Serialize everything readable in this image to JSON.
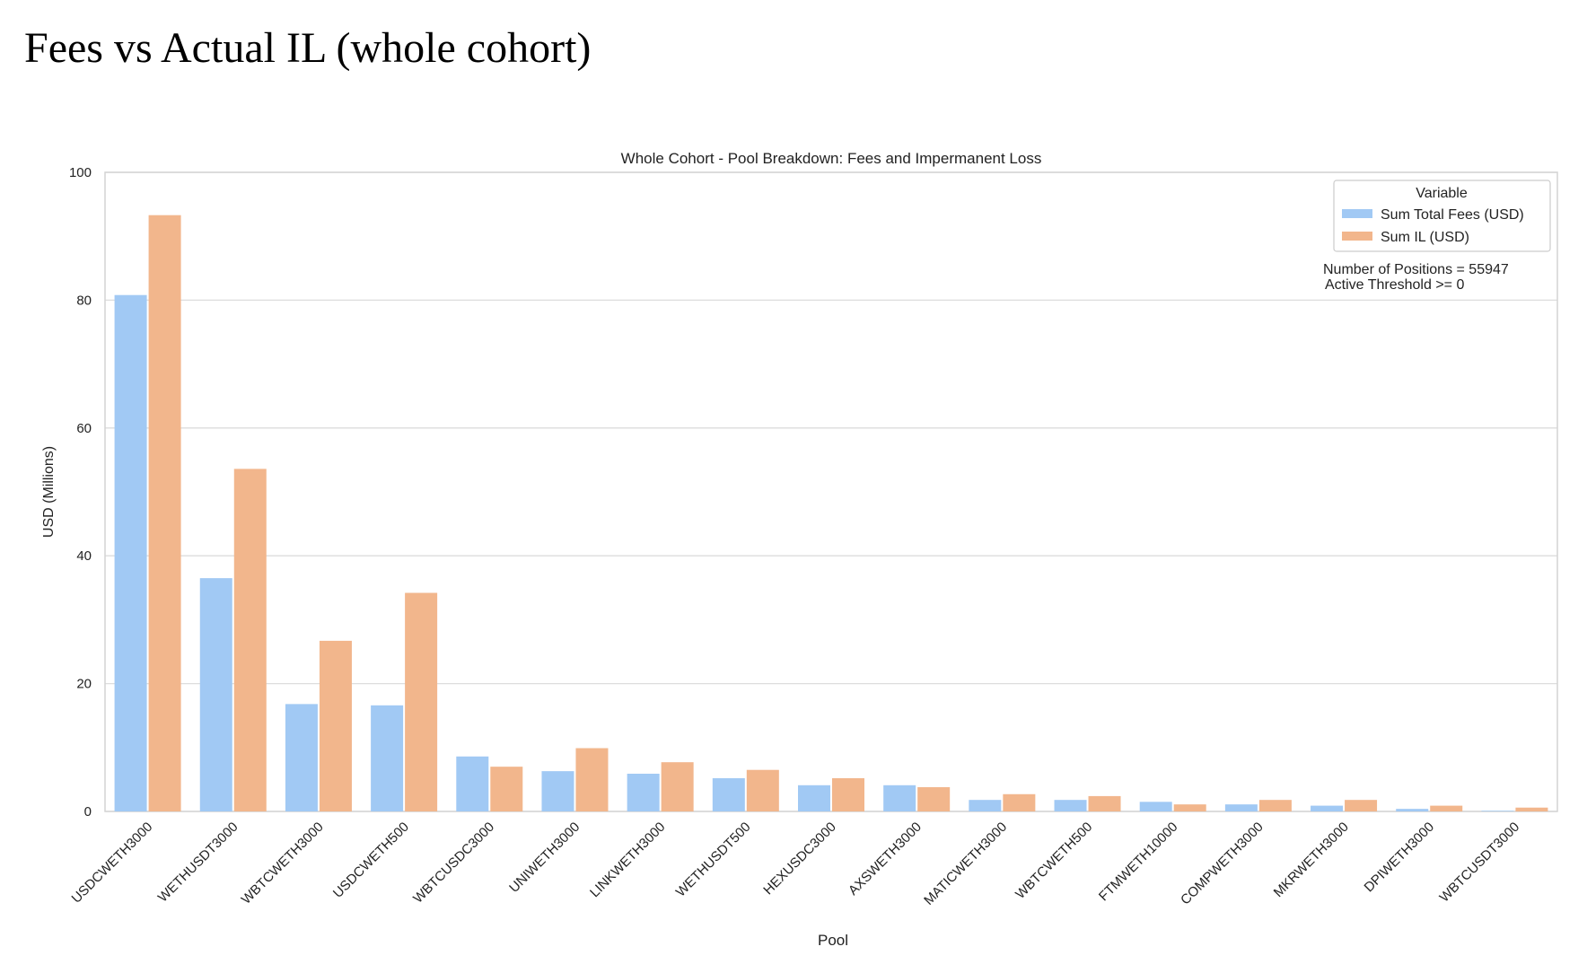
{
  "page_title": "Fees vs Actual IL (whole cohort)",
  "chart_data": {
    "type": "bar",
    "title": "Whole Cohort - Pool Breakdown: Fees and Impermanent Loss",
    "xlabel": "Pool",
    "ylabel": "USD (Millions)",
    "ylim": [
      0,
      100
    ],
    "yticks": [
      "0",
      "20",
      "40",
      "60",
      "80",
      "100"
    ],
    "grid": true,
    "legend_title": "Variable",
    "legend_position": "top-right",
    "categories": [
      "USDCWETH3000",
      "WETHUSDT3000",
      "WBTCWETH3000",
      "USDCWETH500",
      "WBTCUSDC3000",
      "UNIWETH3000",
      "LINKWETH3000",
      "WETHUSDT500",
      "HEXUSDC3000",
      "AXSWETH3000",
      "MATICWETH3000",
      "WBTCWETH500",
      "FTMWETH10000",
      "COMPWETH3000",
      "MKRWETH3000",
      "DPIWETH3000",
      "WBTCUSDT3000"
    ],
    "series": [
      {
        "name": "Sum Total Fees (USD)",
        "color": "#a1c9f4",
        "values": [
          80.8,
          36.5,
          16.8,
          16.6,
          8.6,
          6.3,
          5.9,
          5.2,
          4.1,
          4.1,
          1.8,
          1.8,
          1.5,
          1.1,
          0.9,
          0.4,
          0.1
        ]
      },
      {
        "name": "Sum IL (USD)",
        "color": "#f2b68c",
        "values": [
          93.3,
          53.6,
          26.7,
          34.2,
          7.0,
          9.9,
          7.7,
          6.5,
          5.2,
          3.8,
          2.7,
          2.4,
          1.1,
          1.8,
          1.8,
          0.9,
          0.6
        ]
      }
    ],
    "annotations": [
      "Number of Positions = 55947",
      "Active Threshold >= 0"
    ]
  }
}
